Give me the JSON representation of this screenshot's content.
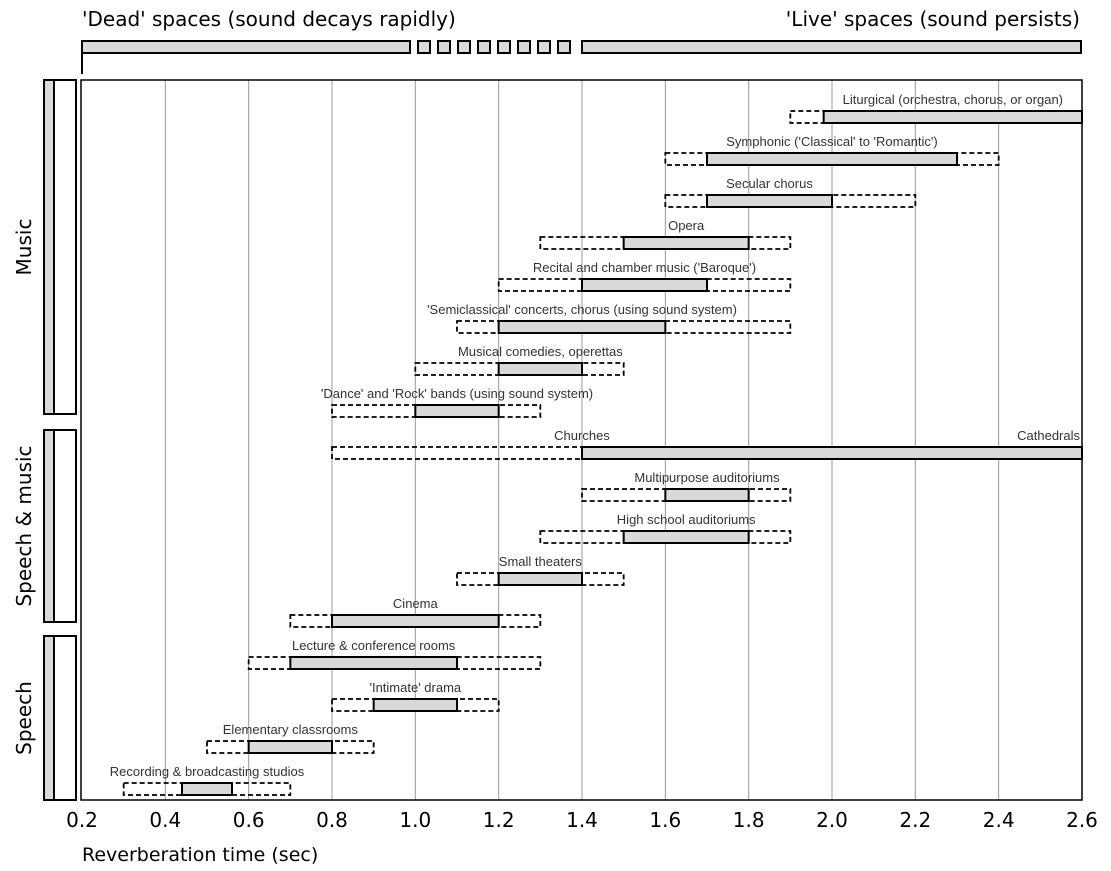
{
  "top_labels": {
    "dead": "'Dead' spaces (sound decays rapidly)",
    "live": "'Live' spaces (sound persists)"
  },
  "groups": {
    "music": "Music",
    "speech_music": "Speech & music",
    "speech": "Speech"
  },
  "colors": {
    "bar_fill": "#d9d9d9",
    "bar_stroke": "#000000",
    "grid": "#999999"
  },
  "chart_data": {
    "type": "range-bar",
    "xlabel": "Reverberation time (sec)",
    "xlim": [
      0.2,
      2.6
    ],
    "xticks": [
      0.2,
      0.4,
      0.6,
      0.8,
      1.0,
      1.2,
      1.4,
      1.6,
      1.8,
      2.0,
      2.2,
      2.4,
      2.6
    ],
    "xtick_labels": [
      "0.2",
      "0.4",
      "0.6",
      "0.8",
      "1.0",
      "1.2",
      "1.4",
      "1.6",
      "1.8",
      "2.0",
      "2.2",
      "2.4",
      "2.6"
    ],
    "grid": "vertical",
    "rows": [
      {
        "label": "Liturgical (orchestra, chorus, or organ)",
        "group": "music",
        "outer": [
          1.9,
          2.6
        ],
        "inner": [
          1.98,
          2.6
        ]
      },
      {
        "label": "Symphonic ('Classical' to 'Romantic')",
        "group": "music",
        "outer": [
          1.6,
          2.4
        ],
        "inner": [
          1.7,
          2.3
        ]
      },
      {
        "label": "Secular chorus",
        "group": "music",
        "outer": [
          1.6,
          2.2
        ],
        "inner": [
          1.7,
          2.0
        ]
      },
      {
        "label": "Opera",
        "group": "music",
        "outer": [
          1.3,
          1.9
        ],
        "inner": [
          1.5,
          1.8
        ]
      },
      {
        "label": "Recital and chamber music ('Baroque')",
        "group": "music",
        "outer": [
          1.2,
          1.9
        ],
        "inner": [
          1.4,
          1.7
        ]
      },
      {
        "label": "'Semiclassical' concerts, chorus (using sound system)",
        "group": "music",
        "outer": [
          1.1,
          1.9
        ],
        "inner": [
          1.2,
          1.6
        ]
      },
      {
        "label": "Musical comedies, operettas",
        "group": "music",
        "outer": [
          1.0,
          1.5
        ],
        "inner": [
          1.2,
          1.4
        ]
      },
      {
        "label": "'Dance' and 'Rock' bands (using sound system)",
        "group": "music",
        "outer": [
          0.8,
          1.3
        ],
        "inner": [
          1.0,
          1.2
        ]
      },
      {
        "label": "Churches",
        "label_end": "Cathedrals",
        "group": "speech_music",
        "outer": [
          0.8,
          2.6
        ],
        "inner": [
          1.4,
          2.6
        ]
      },
      {
        "label": "Multipurpose auditoriums",
        "group": "speech_music",
        "outer": [
          1.4,
          1.9
        ],
        "inner": [
          1.6,
          1.8
        ]
      },
      {
        "label": "High school auditoriums",
        "group": "speech_music",
        "outer": [
          1.3,
          1.9
        ],
        "inner": [
          1.5,
          1.8
        ]
      },
      {
        "label": "Small theaters",
        "group": "speech_music",
        "outer": [
          1.1,
          1.5
        ],
        "inner": [
          1.2,
          1.4
        ]
      },
      {
        "label": "Cinema",
        "group": "speech_music",
        "outer": [
          0.7,
          1.3
        ],
        "inner": [
          0.8,
          1.2
        ]
      },
      {
        "label": "Lecture & conference rooms",
        "group": "speech",
        "outer": [
          0.6,
          1.3
        ],
        "inner": [
          0.7,
          1.1
        ]
      },
      {
        "label": "'Intimate' drama",
        "group": "speech",
        "outer": [
          0.8,
          1.2
        ],
        "inner": [
          0.9,
          1.1
        ]
      },
      {
        "label": "Elementary classrooms",
        "group": "speech",
        "outer": [
          0.5,
          0.9
        ],
        "inner": [
          0.6,
          0.8
        ]
      },
      {
        "label": "Recording & broadcasting studios",
        "group": "speech",
        "outer": [
          0.3,
          0.7
        ],
        "inner": [
          0.44,
          0.56
        ]
      }
    ]
  }
}
